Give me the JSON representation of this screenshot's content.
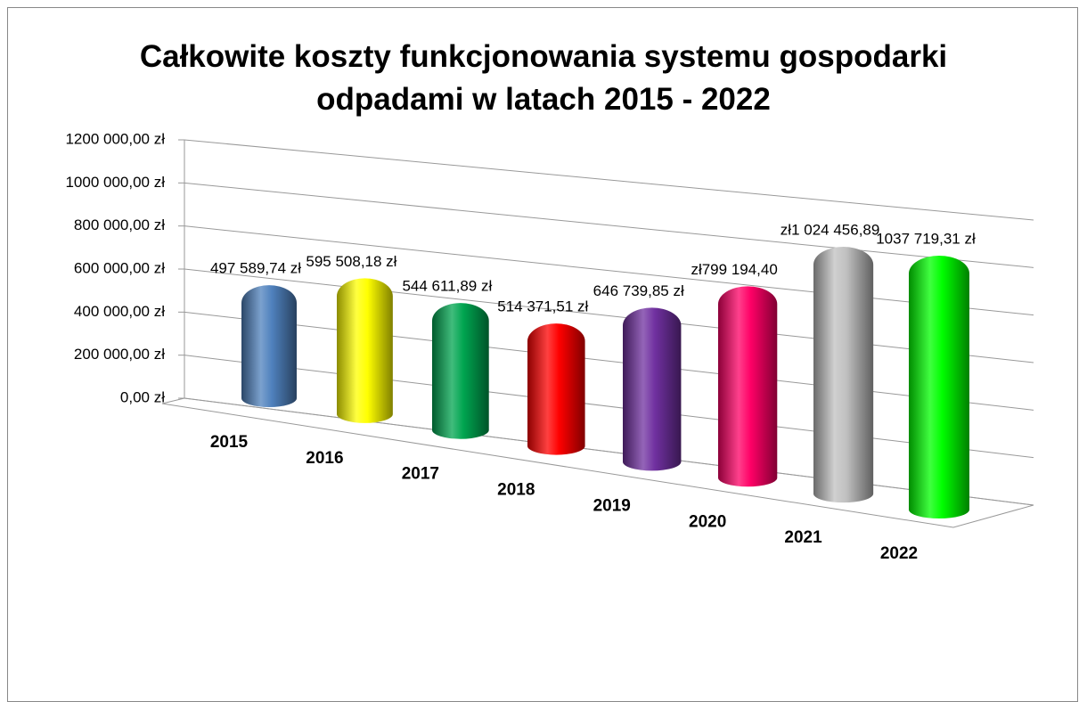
{
  "chart_data": {
    "type": "bar3d-cylinder",
    "title": "Całkowite koszty funkcjonowania systemu gospodarki odpadami w latach 2015 - 2022",
    "categories": [
      "2015",
      "2016",
      "2017",
      "2018",
      "2019",
      "2020",
      "2021",
      "2022"
    ],
    "values": [
      497589.74,
      595508.18,
      544611.89,
      514371.51,
      646739.85,
      799194.4,
      1024456.89,
      1037719.31
    ],
    "value_labels": [
      "497 589,74 zł",
      "595 508,18 zł",
      "544 611,89 zł",
      "514 371,51 zł",
      "646 739,85 zł",
      "zł799 194,40",
      "zł1 024 456,89",
      "1037 719,31 zł"
    ],
    "colors": [
      "#4f81bd",
      "#ffff00",
      "#00a550",
      "#ff0000",
      "#7030a0",
      "#ff0066",
      "#c0c0c0",
      "#00ff00"
    ],
    "ylim": [
      0,
      1200000
    ],
    "yticks": [
      {
        "value": 0,
        "label": "0,00 zł"
      },
      {
        "value": 200000,
        "label": "200 000,00 zł"
      },
      {
        "value": 400000,
        "label": "400 000,00 zł"
      },
      {
        "value": 600000,
        "label": "600 000,00 zł"
      },
      {
        "value": 800000,
        "label": "800 000,00 zł"
      },
      {
        "value": 1000000,
        "label": "1000 000,00 zł"
      },
      {
        "value": 1200000,
        "label": "1200 000,00 zł"
      }
    ],
    "grid": true
  }
}
